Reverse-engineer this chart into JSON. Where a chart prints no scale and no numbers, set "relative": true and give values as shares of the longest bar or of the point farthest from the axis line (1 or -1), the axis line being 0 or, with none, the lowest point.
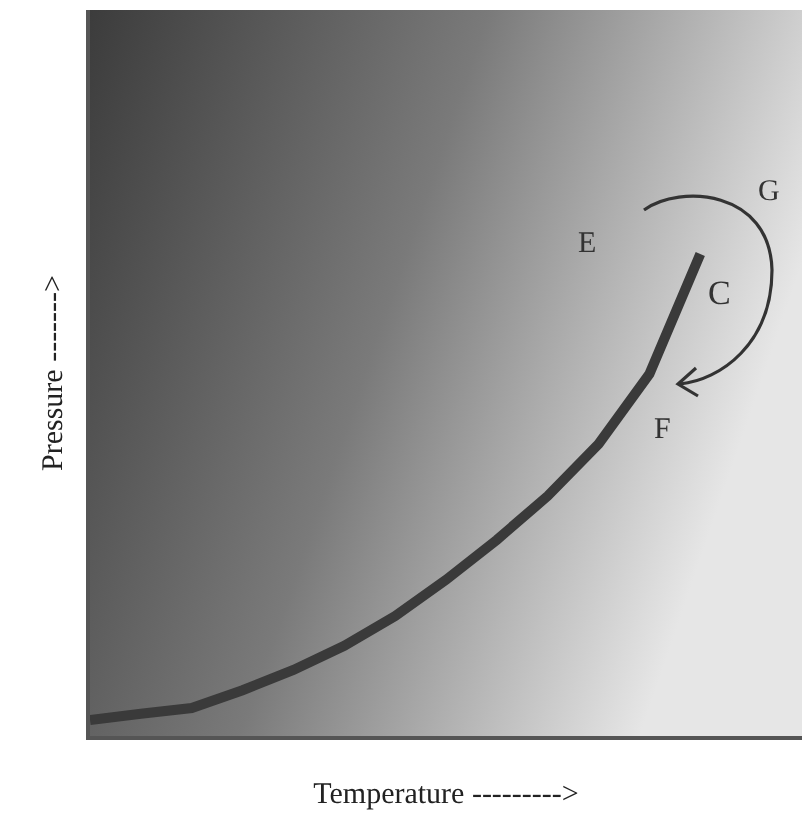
{
  "chart_data": {
    "type": "line",
    "relative": true,
    "xlabel": "Temperature --------->",
    "ylabel": "Pressure ------->",
    "categories": [
      null,
      null,
      null,
      null,
      null,
      null,
      null,
      null,
      null,
      null,
      null,
      null,
      null,
      null,
      null
    ],
    "series": [
      {
        "color": "#3a3a3a",
        "values": [
          0.033,
          0.046,
          0.058,
          0.095,
          0.137,
          0.187,
          0.249,
          0.324,
          0.407,
          0.498,
          0.606,
          0.751,
          1,
          null,
          null
        ]
      }
    ],
    "annotations": [
      "E",
      "G",
      "C",
      "F"
    ],
    "marker": "none",
    "line_style": "solid",
    "tick_labels": false
  }
}
